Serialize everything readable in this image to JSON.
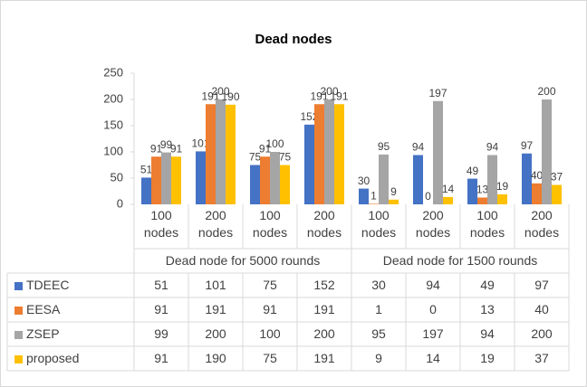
{
  "chart_data": {
    "type": "bar",
    "title": "Dead nodes",
    "categories": [
      "100 nodes",
      "200 nodes",
      "100 nodes",
      "200 nodes",
      "100 nodes",
      "200 nodes",
      "100 nodes",
      "200 nodes"
    ],
    "group_labels": [
      "Dead node for 5000 rounds",
      "Dead node for 1500 rounds"
    ],
    "series": [
      {
        "name": "TDEEC",
        "color": "#4472c4",
        "values": [
          51,
          101,
          75,
          152,
          30,
          94,
          49,
          97
        ]
      },
      {
        "name": "EESA",
        "color": "#ed7d31",
        "values": [
          91,
          191,
          91,
          191,
          1,
          0,
          13,
          40
        ]
      },
      {
        "name": "ZSEP",
        "color": "#a5a5a5",
        "values": [
          99,
          200,
          100,
          200,
          95,
          197,
          94,
          200
        ]
      },
      {
        "name": "proposed",
        "color": "#ffc000",
        "values": [
          91,
          190,
          75,
          191,
          9,
          14,
          19,
          37
        ]
      }
    ],
    "ylim": [
      0,
      250
    ],
    "yticks": [
      0,
      50,
      100,
      150,
      200,
      250
    ],
    "grid": false
  }
}
